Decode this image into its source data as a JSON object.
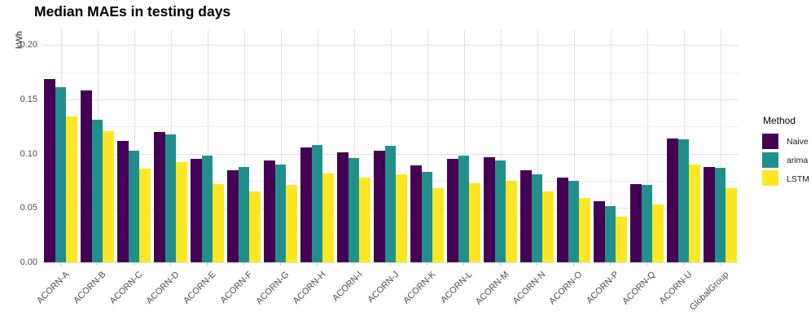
{
  "title": "Median MAEs in testing days",
  "axis": {
    "y_label": "kWh",
    "y_ticks": [
      "0.20",
      "0.15",
      "0.10",
      "0.05",
      "0.00"
    ]
  },
  "legend": {
    "title": "Method",
    "items": [
      {
        "label": "Naive",
        "color": "#440154"
      },
      {
        "label": "arima",
        "color": "#21908C"
      },
      {
        "label": "LSTM",
        "color": "#FDE725"
      }
    ]
  },
  "chart_data": {
    "type": "bar",
    "title": "Median MAEs in testing days",
    "xlabel": "",
    "ylabel": "kWh",
    "categories": [
      "ACORN-A",
      "ACORN-B",
      "ACORN-C",
      "ACORN-D",
      "ACORN-E",
      "ACORN-F",
      "ACORN-G",
      "ACORN-H",
      "ACORN-I",
      "ACORN-J",
      "ACORN-K",
      "ACORN-L",
      "ACORN-M",
      "ACORN-N",
      "ACORN-O",
      "ACORN-P",
      "ACORN-Q",
      "ACORN-U",
      "GlobalGroup"
    ],
    "series": [
      {
        "name": "Naive",
        "color": "#440154",
        "values": [
          0.169,
          0.158,
          0.112,
          0.12,
          0.095,
          0.085,
          0.094,
          0.106,
          0.101,
          0.103,
          0.089,
          0.095,
          0.097,
          0.085,
          0.078,
          0.056,
          0.072,
          0.114,
          0.088
        ]
      },
      {
        "name": "arima",
        "color": "#21908C",
        "values": [
          0.161,
          0.131,
          0.103,
          0.118,
          0.098,
          0.088,
          0.09,
          0.108,
          0.096,
          0.107,
          0.083,
          0.098,
          0.094,
          0.081,
          0.075,
          0.052,
          0.071,
          0.113,
          0.087
        ]
      },
      {
        "name": "LSTM",
        "color": "#FDE725",
        "values": [
          0.134,
          0.121,
          0.086,
          0.092,
          0.072,
          0.065,
          0.071,
          0.082,
          0.078,
          0.081,
          0.068,
          0.073,
          0.075,
          0.065,
          0.059,
          0.042,
          0.053,
          0.09,
          0.068
        ]
      }
    ],
    "ylim": [
      0,
      0.2145
    ],
    "y_major_step": 0.05,
    "y_minor_step": 0.025,
    "grid": true,
    "legend_position": "right",
    "legend_title": "Method"
  }
}
